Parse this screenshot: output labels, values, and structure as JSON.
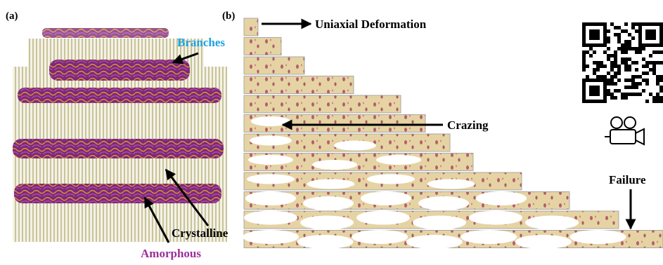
{
  "panel_a": {
    "label": "(a)",
    "annotations": {
      "branches": "Branches",
      "crystalline": "Crystalline",
      "amorphous": "Amorphous"
    }
  },
  "panel_b": {
    "label": "(b)",
    "annotations": {
      "deformation": "Uniaxial Deformation",
      "crazing": "Crazing",
      "failure": "Failure"
    }
  }
}
